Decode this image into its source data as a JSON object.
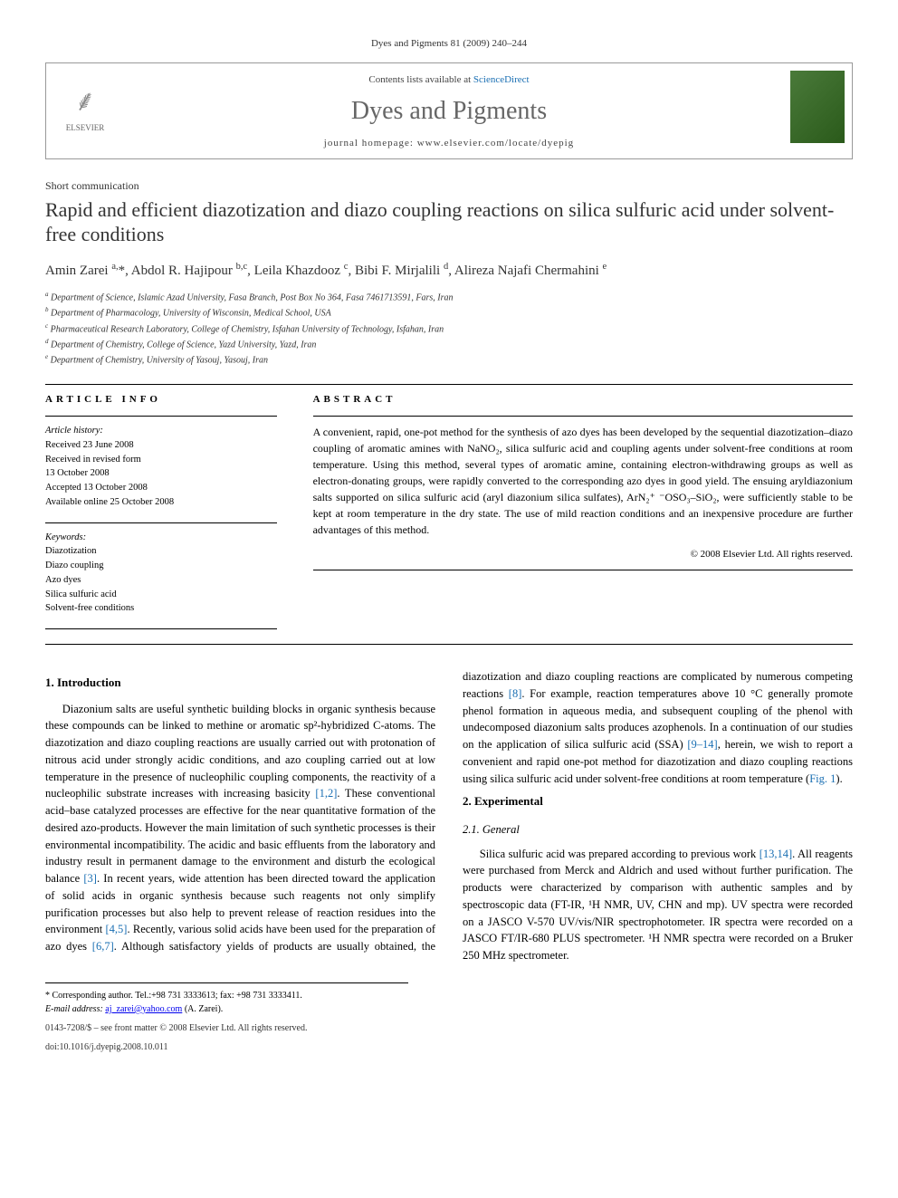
{
  "header": {
    "citation": "Dyes and Pigments 81 (2009) 240–244"
  },
  "journal_box": {
    "contents_prefix": "Contents lists available at ",
    "contents_link": "ScienceDirect",
    "journal_name": "Dyes and Pigments",
    "homepage_prefix": "journal homepage: ",
    "homepage_url": "www.elsevier.com/locate/dyepig",
    "publisher_name": "ELSEVIER"
  },
  "article": {
    "section_type": "Short communication",
    "title": "Rapid and efficient diazotization and diazo coupling reactions on silica sulfuric acid under solvent-free conditions",
    "authors_html": "Amin Zarei <sup>a,</sup>*, Abdol R. Hajipour <sup>b,c</sup>, Leila Khazdooz <sup>c</sup>, Bibi F. Mirjalili <sup>d</sup>, Alireza Najafi Chermahini <sup>e</sup>",
    "affiliations": [
      "a Department of Science, Islamic Azad University, Fasa Branch, Post Box No 364, Fasa 7461713591, Fars, Iran",
      "b Department of Pharmacology, University of Wisconsin, Medical School, USA",
      "c Pharmaceutical Research Laboratory, College of Chemistry, Isfahan University of Technology, Isfahan, Iran",
      "d Department of Chemistry, College of Science, Yazd University, Yazd, Iran",
      "e Department of Chemistry, University of Yasouj, Yasouj, Iran"
    ]
  },
  "info": {
    "heading": "ARTICLE INFO",
    "history_label": "Article history:",
    "history": [
      "Received 23 June 2008",
      "Received in revised form",
      "13 October 2008",
      "Accepted 13 October 2008",
      "Available online 25 October 2008"
    ],
    "keywords_label": "Keywords:",
    "keywords": [
      "Diazotization",
      "Diazo coupling",
      "Azo dyes",
      "Silica sulfuric acid",
      "Solvent-free conditions"
    ]
  },
  "abstract": {
    "heading": "ABSTRACT",
    "text": "A convenient, rapid, one-pot method for the synthesis of azo dyes has been developed by the sequential diazotization–diazo coupling of aromatic amines with NaNO₂, silica sulfuric acid and coupling agents under solvent-free conditions at room temperature. Using this method, several types of aromatic amine, containing electron-withdrawing groups as well as electron-donating groups, were rapidly converted to the corresponding azo dyes in good yield. The ensuing aryldiazonium salts supported on silica sulfuric acid (aryl diazonium silica sulfates), ArN₂⁺ ⁻OSO₃–SiO₂, were sufficiently stable to be kept at room temperature in the dry state. The use of mild reaction conditions and an inexpensive procedure are further advantages of this method.",
    "copyright": "© 2008 Elsevier Ltd. All rights reserved."
  },
  "body": {
    "s1_heading": "1. Introduction",
    "s1_p1a": "Diazonium salts are useful synthetic building blocks in organic synthesis because these compounds can be linked to methine or aromatic sp²-hybridized C-atoms. The diazotization and diazo coupling reactions are usually carried out with protonation of nitrous acid under strongly acidic conditions, and azo coupling carried out at low temperature in the presence of nucleophilic coupling components, the reactivity of a nucleophilic substrate increases with increasing basicity ",
    "ref12": "[1,2]",
    "s1_p1b": ". These conventional acid–base catalyzed processes are effective for the near quantitative formation of the desired azo-products. However the main limitation of such synthetic processes is their environmental incompatibility. The acidic and basic effluents from the laboratory and industry result in permanent damage to the environment and disturb the ecological balance ",
    "ref3": "[3]",
    "s1_p1c": ". In recent years, wide attention has been directed toward the application of solid acids in organic synthesis because such reagents not only simplify purification processes but also help to prevent release of reaction residues into the environment ",
    "ref45": "[4,5]",
    "s1_p1d": ". Recently, various solid acids have been used ",
    "s1_p1e": "for the preparation of azo dyes ",
    "ref67": "[6,7]",
    "s1_p1f": ". Although satisfactory yields of products are usually obtained, the diazotization and diazo coupling reactions are complicated by numerous competing reactions ",
    "ref8": "[8]",
    "s1_p1g": ". For example, reaction temperatures above 10 °C generally promote phenol formation in aqueous media, and subsequent coupling of the phenol with undecomposed diazonium salts produces azophenols. In a continuation of our studies on the application of silica sulfuric acid (SSA) ",
    "ref914": "[9–14]",
    "s1_p1h": ", herein, we wish to report a convenient and rapid one-pot method for diazotization and diazo coupling reactions using silica sulfuric acid under solvent-free conditions at room temperature (",
    "fig1": "Fig. 1",
    "s1_p1i": ").",
    "s2_heading": "2. Experimental",
    "s21_heading": "2.1. General",
    "s21_p1a": "Silica sulfuric acid was prepared according to previous work ",
    "ref1314": "[13,14]",
    "s21_p1b": ". All reagents were purchased from Merck and Aldrich and used without further purification. The products were characterized by comparison with authentic samples and by spectroscopic data (FT-IR, ¹H NMR, UV, CHN and mp). UV spectra were recorded on a JASCO V-570 UV/vis/NIR spectrophotometer. IR spectra were recorded on a JASCO FT/IR-680 PLUS spectrometer. ¹H NMR spectra were recorded on a Bruker 250 MHz spectrometer."
  },
  "footnote": {
    "corr": "* Corresponding author. Tel.:+98 731 3333613; fax: +98 731 3333411.",
    "email_label": "E-mail address: ",
    "email": "aj_zarei@yahoo.com",
    "email_suffix": " (A. Zarei)."
  },
  "footer": {
    "line1": "0143-7208/$ – see front matter © 2008 Elsevier Ltd. All rights reserved.",
    "line2": "doi:10.1016/j.dyepig.2008.10.011"
  },
  "colors": {
    "link": "#1a6fb3",
    "text": "#000000",
    "muted": "#666666",
    "border": "#999999",
    "cover_bg": "#4a7a3a"
  },
  "fonts": {
    "body_family": "Georgia, Times New Roman, serif",
    "title_size_pt": 22,
    "body_size_pt": 12.5,
    "small_size_pt": 10
  }
}
